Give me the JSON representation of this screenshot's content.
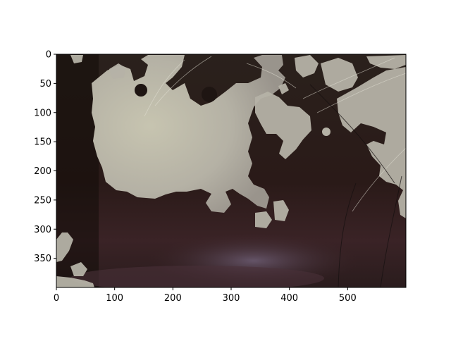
{
  "figure": {
    "kind": "image-plot",
    "description_free": true,
    "x_axis": {
      "ticks": [
        0,
        100,
        200,
        300,
        400,
        500
      ],
      "range": [
        0,
        600
      ]
    },
    "y_axis": {
      "ticks": [
        0,
        50,
        100,
        150,
        200,
        250,
        300,
        350
      ],
      "range": [
        0,
        400
      ],
      "inverted": true
    },
    "colors": {
      "dark_background": "#1e1512",
      "mask_overlay": "#b5b2a6",
      "mask_bright": "#d6d4c0",
      "lower_reddish": "#3a2326"
    }
  }
}
